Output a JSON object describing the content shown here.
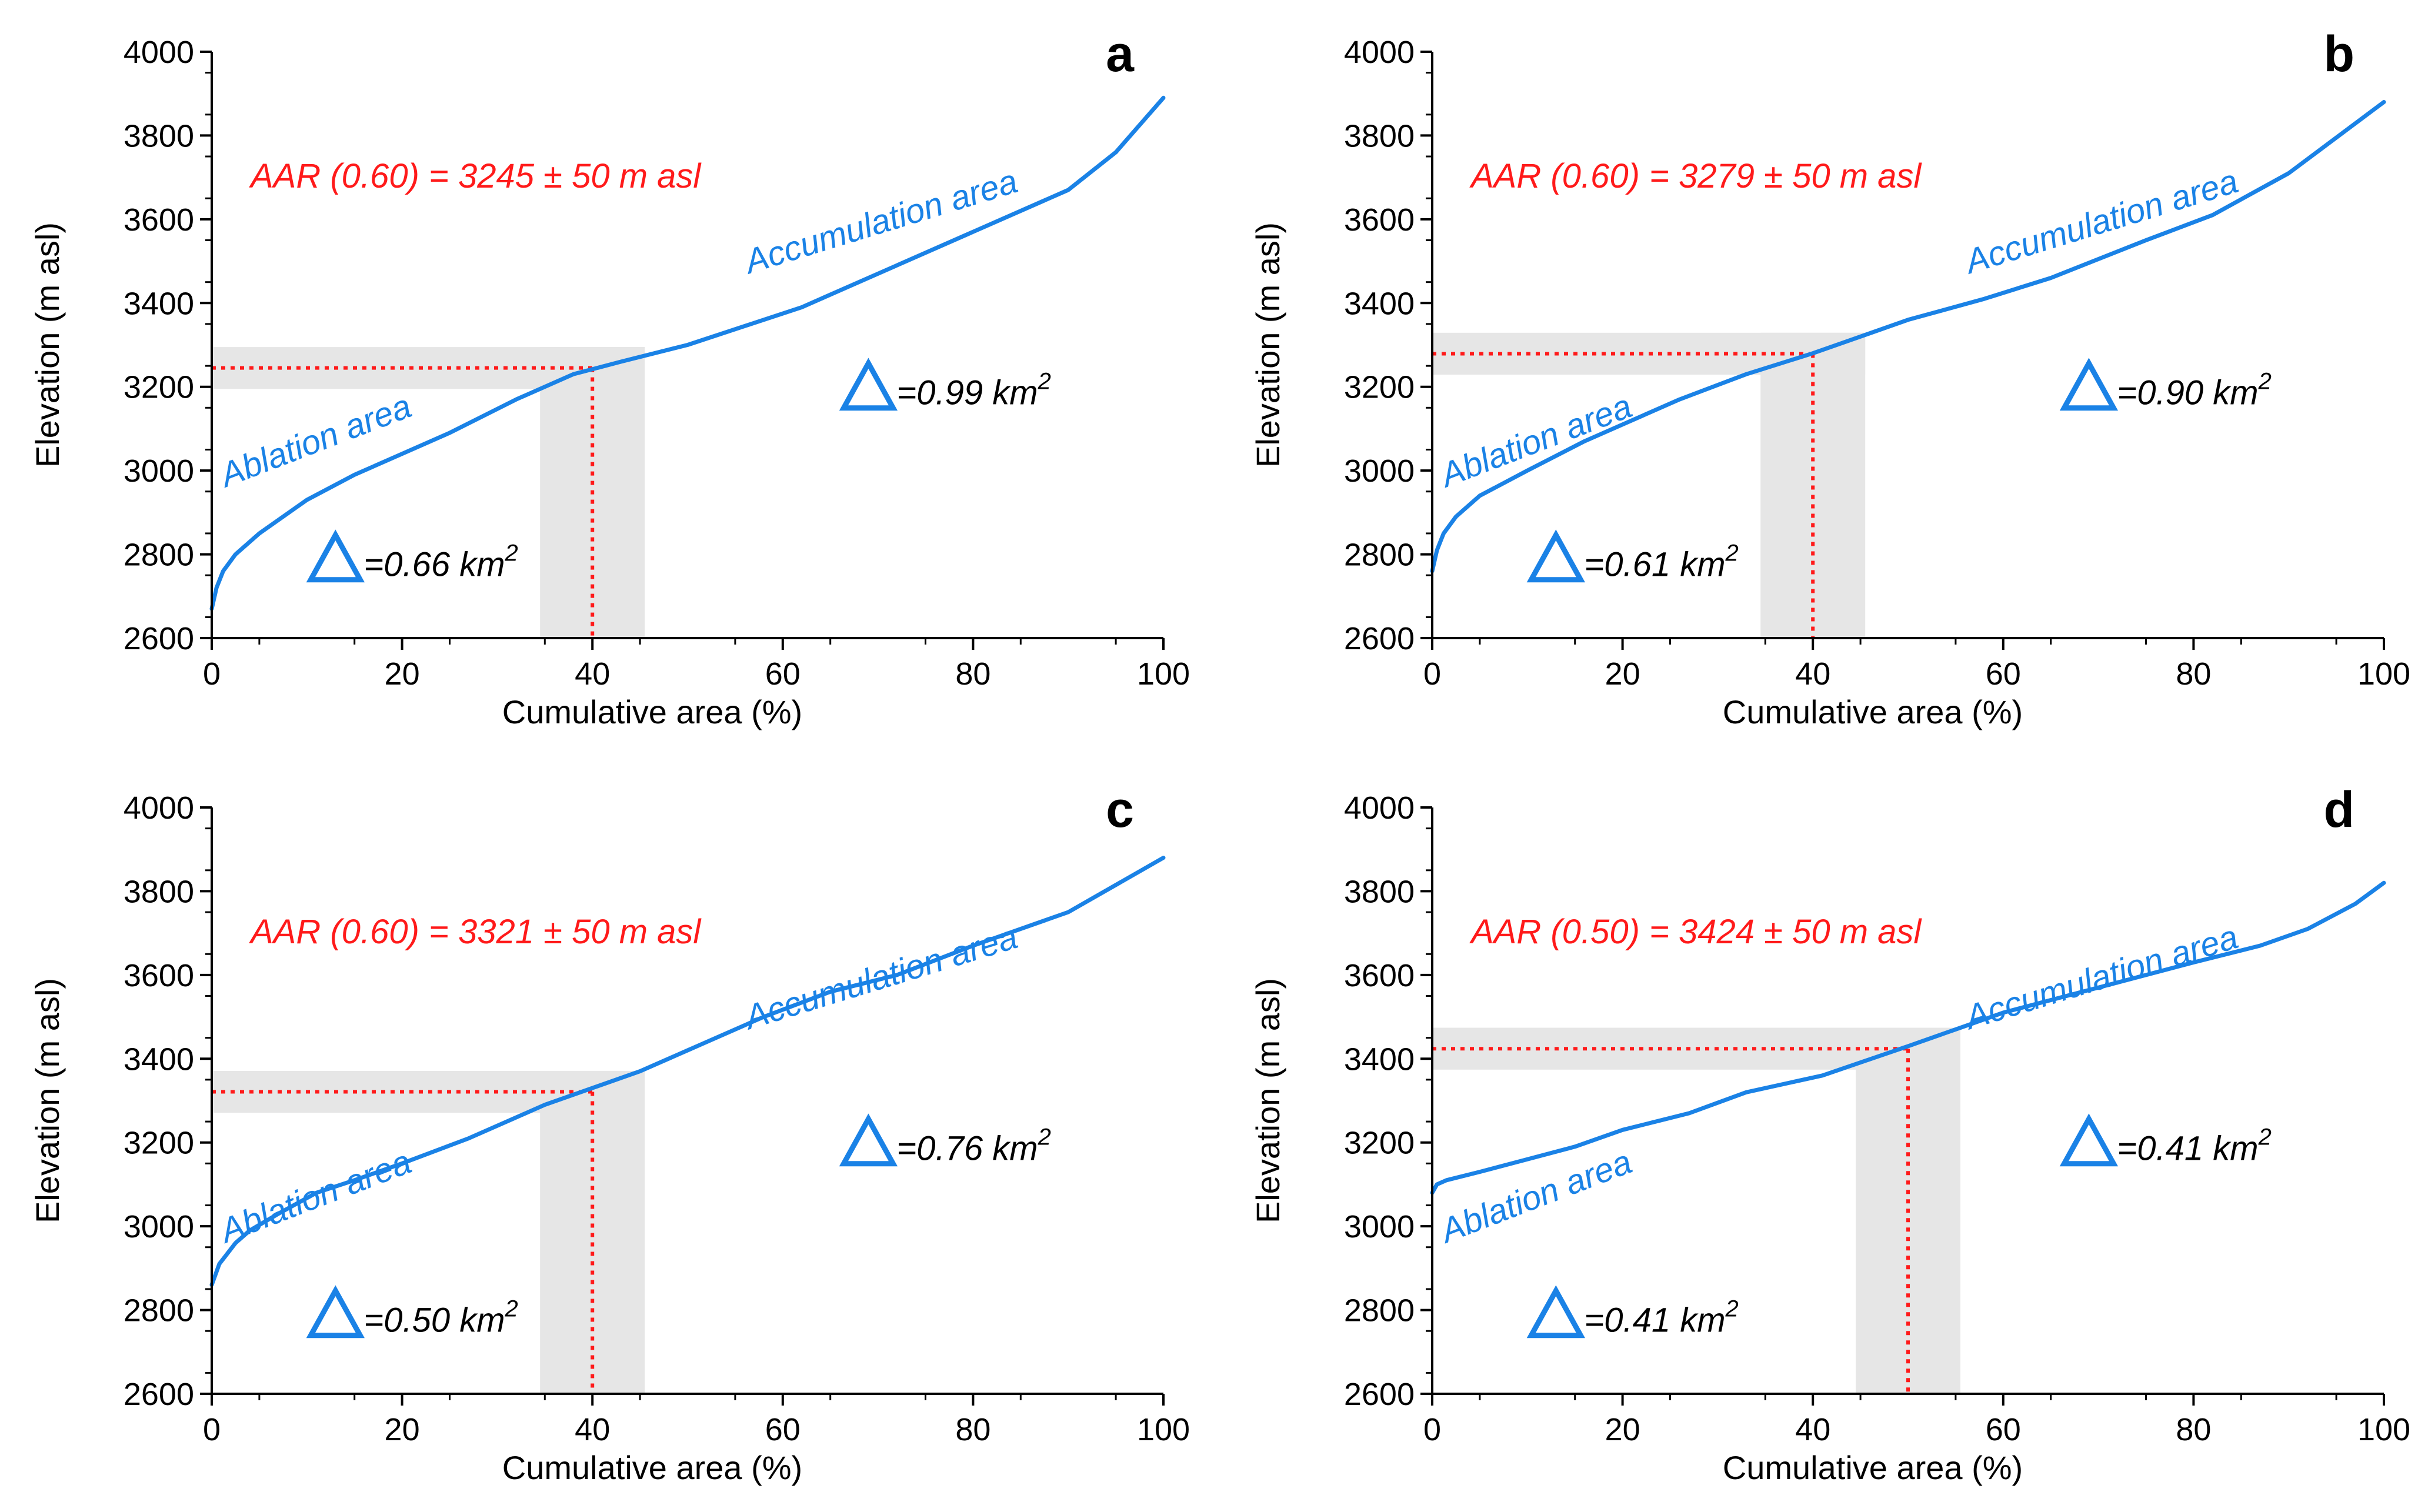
{
  "figure": {
    "colors": {
      "curve": "#1a82e6",
      "ela": "#ff1a1a",
      "band": "#e6e6e6",
      "delta": "#1a82e6",
      "axis": "#000000"
    }
  },
  "chart_data": [
    {
      "type": "line",
      "panel": "a",
      "xlabel": "Cumulative area (%)",
      "ylabel": "Elevation (m asl)",
      "xlim": [
        0,
        100
      ],
      "ylim": [
        2600,
        4000
      ],
      "x_ticks": [
        0,
        20,
        40,
        60,
        80,
        100
      ],
      "y_ticks": [
        2600,
        2800,
        3000,
        3200,
        3400,
        3600,
        3800,
        4000
      ],
      "series": [
        {
          "x": [
            0,
            0.5,
            1.2,
            2.5,
            5,
            10,
            15,
            20,
            25,
            32,
            38,
            43,
            50,
            62,
            70,
            80,
            90,
            95,
            100
          ],
          "y": [
            2670,
            2720,
            2760,
            2800,
            2850,
            2930,
            2990,
            3040,
            3090,
            3170,
            3230,
            3260,
            3300,
            3390,
            3470,
            3570,
            3670,
            3760,
            3890
          ]
        }
      ],
      "aar_label": "AAR (0.60) = 3245 ± 50 m asl",
      "ela": 3245,
      "ela_uncertainty": 50,
      "ela_x": 40,
      "band_x": [
        34.5,
        45.5
      ],
      "ablation_label": "Ablation area",
      "accumulation_label": "Accumulation area",
      "delta_ablation": {
        "prefix": "=0.66 km",
        "sup": "2"
      },
      "delta_accumulation": {
        "prefix": "=0.99 km",
        "sup": "2"
      }
    },
    {
      "type": "line",
      "panel": "b",
      "xlabel": "Cumulative area (%)",
      "ylabel": "Elevation (m asl)",
      "xlim": [
        0,
        100
      ],
      "ylim": [
        2600,
        4000
      ],
      "x_ticks": [
        0,
        20,
        40,
        60,
        80,
        100
      ],
      "y_ticks": [
        2600,
        2800,
        3000,
        3200,
        3400,
        3600,
        3800,
        4000
      ],
      "series": [
        {
          "x": [
            0,
            0.5,
            1.2,
            2.5,
            5,
            10,
            16,
            20,
            26,
            33,
            40,
            45,
            50,
            58,
            65,
            75,
            82,
            90,
            100
          ],
          "y": [
            2760,
            2810,
            2850,
            2890,
            2940,
            3000,
            3070,
            3110,
            3170,
            3230,
            3280,
            3320,
            3360,
            3410,
            3460,
            3550,
            3610,
            3710,
            3880
          ]
        }
      ],
      "aar_label": "AAR (0.60) = 3279 ± 50 m asl",
      "ela": 3279,
      "ela_uncertainty": 50,
      "ela_x": 40,
      "band_x": [
        34.5,
        45.5
      ],
      "ablation_label": "Ablation area",
      "accumulation_label": "Accumulation area",
      "delta_ablation": {
        "prefix": "=0.61 km",
        "sup": "2"
      },
      "delta_accumulation": {
        "prefix": "=0.90 km",
        "sup": "2"
      }
    },
    {
      "type": "line",
      "panel": "c",
      "xlabel": "Cumulative area (%)",
      "ylabel": "Elevation (m asl)",
      "xlim": [
        0,
        100
      ],
      "ylim": [
        2600,
        4000
      ],
      "x_ticks": [
        0,
        20,
        40,
        60,
        80,
        100
      ],
      "y_ticks": [
        2600,
        2800,
        3000,
        3200,
        3400,
        3600,
        3800,
        4000
      ],
      "series": [
        {
          "x": [
            0,
            0.8,
            2.5,
            4,
            7,
            11,
            15,
            20,
            27,
            35,
            40,
            45,
            50,
            58,
            65,
            72,
            80,
            90,
            100
          ],
          "y": [
            2860,
            2910,
            2960,
            2990,
            3030,
            3080,
            3110,
            3150,
            3210,
            3290,
            3330,
            3370,
            3420,
            3500,
            3560,
            3600,
            3670,
            3750,
            3880
          ]
        }
      ],
      "aar_label": "AAR (0.60) = 3321 ± 50 m asl",
      "ela": 3321,
      "ela_uncertainty": 50,
      "ela_x": 40,
      "band_x": [
        34.5,
        45.5
      ],
      "ablation_label": "Ablation area",
      "accumulation_label": "Accumulation area",
      "delta_ablation": {
        "prefix": "=0.50 km",
        "sup": "2"
      },
      "delta_accumulation": {
        "prefix": "=0.76 km",
        "sup": "2"
      }
    },
    {
      "type": "line",
      "panel": "d",
      "xlabel": "Cumulative area (%)",
      "ylabel": "Elevation (m asl)",
      "xlim": [
        0,
        100
      ],
      "ylim": [
        2600,
        4000
      ],
      "x_ticks": [
        0,
        20,
        40,
        60,
        80,
        100
      ],
      "y_ticks": [
        2600,
        2800,
        3000,
        3200,
        3400,
        3600,
        3800,
        4000
      ],
      "series": [
        {
          "x": [
            0,
            0.5,
            1.5,
            5,
            10,
            15,
            20,
            27,
            33,
            41,
            50,
            55,
            60,
            70,
            80,
            87,
            92,
            97,
            100
          ],
          "y": [
            3080,
            3100,
            3110,
            3130,
            3160,
            3190,
            3230,
            3270,
            3320,
            3360,
            3430,
            3470,
            3510,
            3570,
            3630,
            3670,
            3710,
            3770,
            3820
          ]
        }
      ],
      "aar_label": "AAR (0.50) = 3424 ± 50 m asl",
      "ela": 3424,
      "ela_uncertainty": 50,
      "ela_x": 50,
      "band_x": [
        44.5,
        55.5
      ],
      "ablation_label": "Ablation area",
      "accumulation_label": "Accumulation area",
      "delta_ablation": {
        "prefix": "=0.41 km",
        "sup": "2"
      },
      "delta_accumulation": {
        "prefix": "=0.41 km",
        "sup": "2"
      }
    }
  ]
}
